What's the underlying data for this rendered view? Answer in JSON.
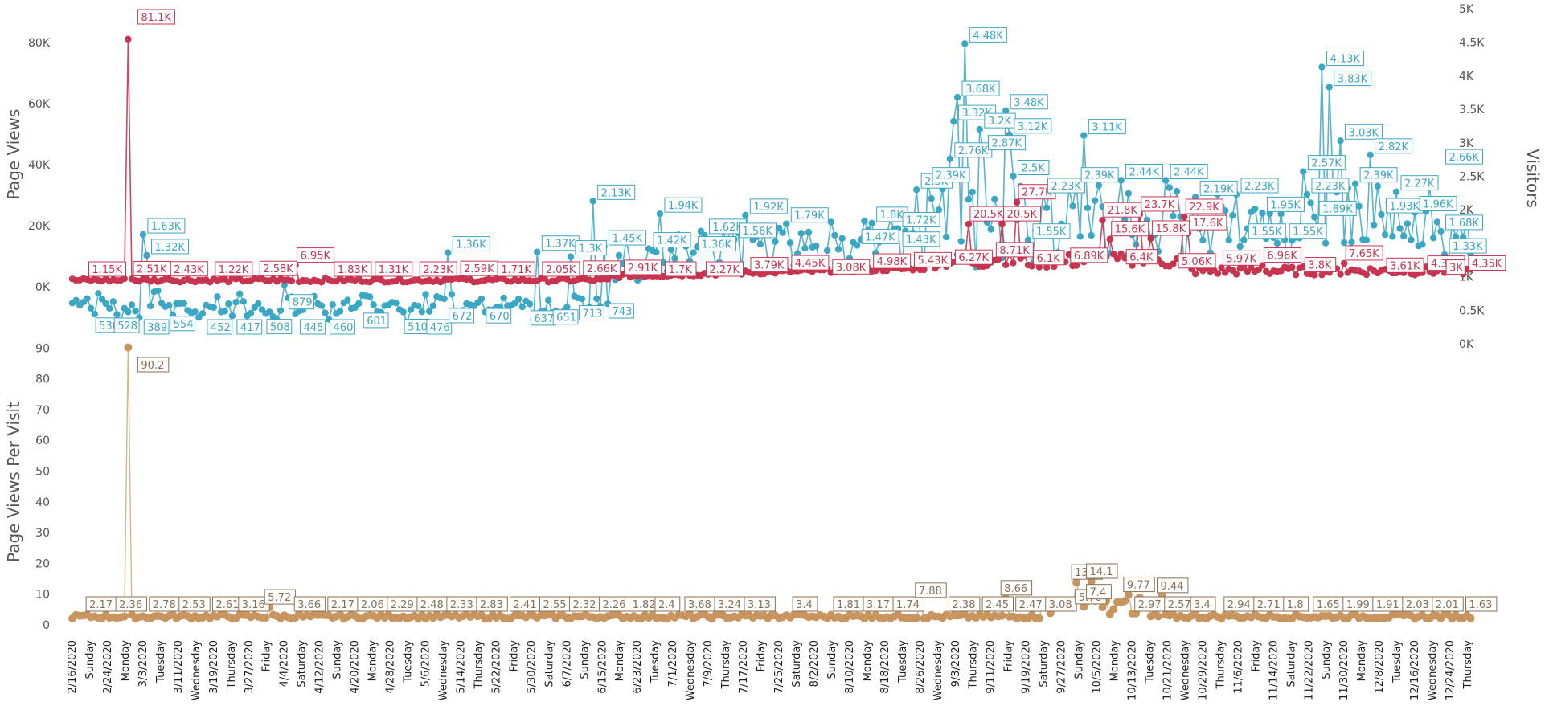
{
  "chart_data": [
    {
      "type": "line",
      "panel": "top",
      "ylabel": "Page Views",
      "y2label": "Visitors",
      "ylim": [
        -8000,
        85000
      ],
      "y2lim": [
        0,
        5000
      ],
      "left_ticks": [
        "0K",
        "20K",
        "40K",
        "60K",
        "80K"
      ],
      "right_ticks": [
        "0K",
        "0.5K",
        "1K",
        "1.5K",
        "2K",
        "2.5K",
        "3K",
        "3.5K",
        "4K",
        "4.5K",
        "5K"
      ],
      "colors": {
        "page_views": "#c8344f",
        "visitors": "#3aa7c5"
      },
      "series": [
        {
          "axis": "left",
          "labels": [
            {
              "day": 4,
              "text": "1.15K"
            },
            {
              "day": 16,
              "text": "2.51K"
            },
            {
              "day": 26,
              "text": "2.43K"
            },
            {
              "day": 38,
              "text": "1.22K"
            },
            {
              "day": 50,
              "text": "2.58K"
            },
            {
              "day": 60,
              "text": "6.95K"
            },
            {
              "day": 70,
              "text": "1.83K"
            },
            {
              "day": 81,
              "text": "1.31K"
            },
            {
              "day": 93,
              "text": "2.23K"
            },
            {
              "day": 104,
              "text": "2.59K"
            },
            {
              "day": 114,
              "text": "1.71K"
            },
            {
              "day": 126,
              "text": "2.05K"
            },
            {
              "day": 137,
              "text": "2.66K"
            },
            {
              "day": 148,
              "text": "2.91K"
            },
            {
              "day": 159,
              "text": "1.7K"
            },
            {
              "day": 170,
              "text": "2.27K"
            },
            {
              "day": 182,
              "text": "3.79K"
            },
            {
              "day": 193,
              "text": "4.45K"
            },
            {
              "day": 204,
              "text": "3.08K"
            },
            {
              "day": 215,
              "text": "4.98K"
            },
            {
              "day": 226,
              "text": "5.43K"
            },
            {
              "day": 237,
              "text": "6.27K"
            },
            {
              "day": 241,
              "text": "20.5K"
            },
            {
              "day": 248,
              "text": "8.71K"
            },
            {
              "day": 250,
              "text": "20.5K"
            },
            {
              "day": 254,
              "text": "27.7K"
            },
            {
              "day": 258,
              "text": "6.1K"
            },
            {
              "day": 268,
              "text": "6.89K"
            },
            {
              "day": 277,
              "text": "21.8K"
            },
            {
              "day": 279,
              "text": "15.6K"
            },
            {
              "day": 283,
              "text": "6.4K"
            },
            {
              "day": 287,
              "text": "23.7K"
            },
            {
              "day": 290,
              "text": "15.8K"
            },
            {
              "day": 299,
              "text": "22.9K"
            },
            {
              "day": 300,
              "text": "17.6K"
            },
            {
              "day": 297,
              "text": "5.06K"
            },
            {
              "day": 309,
              "text": "5.97K"
            },
            {
              "day": 320,
              "text": "6.96K"
            },
            {
              "day": 331,
              "text": "3.8K"
            },
            {
              "day": 342,
              "text": "7.65K"
            },
            {
              "day": 353,
              "text": "3.61K"
            },
            {
              "day": 364,
              "text": "4.31K"
            },
            {
              "day": 369,
              "text": "3K"
            },
            {
              "day": 375,
              "text": "4.35K"
            }
          ],
          "spike": {
            "day": 15,
            "text": "81.1K"
          }
        },
        {
          "axis": "right",
          "labels": [
            {
              "day": 5,
              "text": "530"
            },
            {
              "day": 10,
              "text": "528"
            },
            {
              "day": 18,
              "text": "389"
            },
            {
              "day": 25,
              "text": "554"
            },
            {
              "day": 35,
              "text": "452"
            },
            {
              "day": 43,
              "text": "417"
            },
            {
              "day": 51,
              "text": "508"
            },
            {
              "day": 57,
              "text": "879"
            },
            {
              "day": 60,
              "text": "445"
            },
            {
              "day": 68,
              "text": "460"
            },
            {
              "day": 77,
              "text": "601"
            },
            {
              "day": 88,
              "text": "510"
            },
            {
              "day": 94,
              "text": "476"
            },
            {
              "day": 100,
              "text": "672"
            },
            {
              "day": 110,
              "text": "670"
            },
            {
              "day": 122,
              "text": "637"
            },
            {
              "day": 128,
              "text": "651"
            },
            {
              "day": 135,
              "text": "713"
            },
            {
              "day": 143,
              "text": "743"
            },
            {
              "day": 19,
              "text": "1.63K"
            },
            {
              "day": 20,
              "text": "1.32K"
            },
            {
              "day": 101,
              "text": "1.36K"
            },
            {
              "day": 125,
              "text": "1.37K"
            },
            {
              "day": 134,
              "text": "1.3K"
            },
            {
              "day": 140,
              "text": "2.13K"
            },
            {
              "day": 143,
              "text": "1.45K"
            },
            {
              "day": 155,
              "text": "1.42K"
            },
            {
              "day": 158,
              "text": "1.94K"
            },
            {
              "day": 167,
              "text": "1.36K"
            },
            {
              "day": 170,
              "text": "1.62K"
            },
            {
              "day": 178,
              "text": "1.56K"
            },
            {
              "day": 181,
              "text": "1.92K"
            },
            {
              "day": 192,
              "text": "1.79K"
            },
            {
              "day": 211,
              "text": "1.47K"
            },
            {
              "day": 215,
              "text": "1.8K"
            },
            {
              "day": 222,
              "text": "1.43K"
            },
            {
              "day": 222,
              "text": "1.72K"
            },
            {
              "day": 227,
              "text": "2.3K"
            },
            {
              "day": 230,
              "text": "2.39K"
            },
            {
              "day": 236,
              "text": "2.76K"
            },
            {
              "day": 237,
              "text": "3.32K"
            },
            {
              "day": 238,
              "text": "3.68K"
            },
            {
              "day": 240,
              "text": "4.48K"
            },
            {
              "day": 244,
              "text": "3.2K"
            },
            {
              "day": 245,
              "text": "2.87K"
            },
            {
              "day": 251,
              "text": "3.48K"
            },
            {
              "day": 252,
              "text": "3.12K"
            },
            {
              "day": 253,
              "text": "2.5K"
            },
            {
              "day": 257,
              "text": "1.55K"
            },
            {
              "day": 261,
              "text": "2.23K"
            },
            {
              "day": 272,
              "text": "3.11K"
            },
            {
              "day": 270,
              "text": "2.39K"
            },
            {
              "day": 282,
              "text": "2.44K"
            },
            {
              "day": 294,
              "text": "2.44K"
            },
            {
              "day": 302,
              "text": "2.19K"
            },
            {
              "day": 313,
              "text": "2.23K"
            },
            {
              "day": 315,
              "text": "1.55K"
            },
            {
              "day": 320,
              "text": "1.95K"
            },
            {
              "day": 326,
              "text": "1.55K"
            },
            {
              "day": 331,
              "text": "2.57K"
            },
            {
              "day": 332,
              "text": "2.23K"
            },
            {
              "day": 334,
              "text": "1.89K"
            },
            {
              "day": 336,
              "text": "4.13K"
            },
            {
              "day": 338,
              "text": "3.83K"
            },
            {
              "day": 341,
              "text": "3.03K"
            },
            {
              "day": 345,
              "text": "2.39K"
            },
            {
              "day": 349,
              "text": "2.82K"
            },
            {
              "day": 352,
              "text": "1.93K"
            },
            {
              "day": 356,
              "text": "2.27K"
            },
            {
              "day": 361,
              "text": "1.96K"
            },
            {
              "day": 368,
              "text": "2.66K"
            },
            {
              "day": 368,
              "text": "1.68K"
            },
            {
              "day": 369,
              "text": "1.33K"
            }
          ]
        }
      ]
    },
    {
      "type": "line",
      "panel": "bottom",
      "ylabel": "Page Views Per Visit",
      "ylim": [
        0,
        95
      ],
      "ticks": [
        "0",
        "10",
        "20",
        "30",
        "40",
        "50",
        "60",
        "70",
        "80",
        "90"
      ],
      "color": "#c9955e",
      "spike": {
        "day": 15,
        "text": "90.2"
      },
      "labels": [
        {
          "day": 5,
          "text": "2.17"
        },
        {
          "day": 13,
          "text": "2.36"
        },
        {
          "day": 22,
          "text": "2.78"
        },
        {
          "day": 30,
          "text": "2.53"
        },
        {
          "day": 39,
          "text": "2.61"
        },
        {
          "day": 46,
          "text": "3.16"
        },
        {
          "day": 53,
          "text": "5.72"
        },
        {
          "day": 61,
          "text": "3.66"
        },
        {
          "day": 70,
          "text": "2.17"
        },
        {
          "day": 78,
          "text": "2.06"
        },
        {
          "day": 86,
          "text": "2.29"
        },
        {
          "day": 94,
          "text": "2.48"
        },
        {
          "day": 102,
          "text": "2.33"
        },
        {
          "day": 110,
          "text": "2.83"
        },
        {
          "day": 119,
          "text": "2.41"
        },
        {
          "day": 127,
          "text": "2.55"
        },
        {
          "day": 135,
          "text": "2.32"
        },
        {
          "day": 143,
          "text": "2.26"
        },
        {
          "day": 151,
          "text": "1.82"
        },
        {
          "day": 158,
          "text": "2.4"
        },
        {
          "day": 166,
          "text": "3.68"
        },
        {
          "day": 174,
          "text": "3.24"
        },
        {
          "day": 182,
          "text": "3.13"
        },
        {
          "day": 195,
          "text": "3.4"
        },
        {
          "day": 206,
          "text": "1.81"
        },
        {
          "day": 214,
          "text": "3.17"
        },
        {
          "day": 222,
          "text": "1.74"
        },
        {
          "day": 228,
          "text": "7.88"
        },
        {
          "day": 237,
          "text": "2.38"
        },
        {
          "day": 246,
          "text": "2.45"
        },
        {
          "day": 251,
          "text": "8.66"
        },
        {
          "day": 255,
          "text": "2.47"
        },
        {
          "day": 263,
          "text": "3.08"
        },
        {
          "day": 270,
          "text": "13.8"
        },
        {
          "day": 274,
          "text": "14.1"
        },
        {
          "day": 271,
          "text": "5.76"
        },
        {
          "day": 274,
          "text": "7.4"
        },
        {
          "day": 284,
          "text": "9.77"
        },
        {
          "day": 293,
          "text": "9.44"
        },
        {
          "day": 287,
          "text": "2.97"
        },
        {
          "day": 295,
          "text": "2.57"
        },
        {
          "day": 302,
          "text": "3.4"
        },
        {
          "day": 311,
          "text": "2.94"
        },
        {
          "day": 319,
          "text": "2.71"
        },
        {
          "day": 327,
          "text": "1.8"
        },
        {
          "day": 335,
          "text": "1.65"
        },
        {
          "day": 343,
          "text": "1.99"
        },
        {
          "day": 351,
          "text": "1.91"
        },
        {
          "day": 359,
          "text": "2.03"
        },
        {
          "day": 367,
          "text": "2.01"
        },
        {
          "day": 376,
          "text": "1.63"
        }
      ]
    }
  ],
  "x_axis": {
    "date_ticks": [
      {
        "day": 0,
        "text": "2/16/2020"
      },
      {
        "day": 8,
        "text": "2/24/2020"
      },
      {
        "day": 16,
        "text": "3/3/2020"
      },
      {
        "day": 24,
        "text": "3/11/2020"
      },
      {
        "day": 32,
        "text": "3/19/2020"
      },
      {
        "day": 40,
        "text": "3/27/2020"
      },
      {
        "day": 48,
        "text": "4/4/2020"
      },
      {
        "day": 56,
        "text": "4/12/2020"
      },
      {
        "day": 64,
        "text": "4/20/2020"
      },
      {
        "day": 72,
        "text": "4/28/2020"
      },
      {
        "day": 80,
        "text": "5/6/2020"
      },
      {
        "day": 88,
        "text": "5/14/2020"
      },
      {
        "day": 96,
        "text": "5/22/2020"
      },
      {
        "day": 104,
        "text": "5/30/2020"
      },
      {
        "day": 112,
        "text": "6/7/2020"
      },
      {
        "day": 120,
        "text": "6/15/2020"
      },
      {
        "day": 128,
        "text": "6/23/2020"
      },
      {
        "day": 136,
        "text": "7/1/2020"
      },
      {
        "day": 144,
        "text": "7/9/2020"
      },
      {
        "day": 152,
        "text": "7/17/2020"
      },
      {
        "day": 160,
        "text": "7/25/2020"
      },
      {
        "day": 168,
        "text": "8/2/2020"
      },
      {
        "day": 176,
        "text": "8/10/2020"
      },
      {
        "day": 184,
        "text": "8/18/2020"
      },
      {
        "day": 192,
        "text": "8/26/2020"
      },
      {
        "day": 200,
        "text": "9/3/2020"
      },
      {
        "day": 208,
        "text": "9/11/2020"
      },
      {
        "day": 216,
        "text": "9/19/2020"
      },
      {
        "day": 224,
        "text": "9/27/2020"
      },
      {
        "day": 232,
        "text": "10/5/2020"
      },
      {
        "day": 240,
        "text": "10/13/2020"
      },
      {
        "day": 248,
        "text": "10/21/2020"
      },
      {
        "day": 256,
        "text": "10/29/2020"
      },
      {
        "day": 264,
        "text": "11/6/2020"
      },
      {
        "day": 272,
        "text": "11/14/2020"
      },
      {
        "day": 280,
        "text": "11/22/2020"
      },
      {
        "day": 288,
        "text": "11/30/2020"
      },
      {
        "day": 296,
        "text": "12/8/2020"
      },
      {
        "day": 304,
        "text": "12/16/2020"
      },
      {
        "day": 312,
        "text": "12/24/2020"
      }
    ],
    "weekday_ticks": [
      {
        "day": 4,
        "text": "Sunday"
      },
      {
        "day": 12,
        "text": "Monday"
      },
      {
        "day": 20,
        "text": "Tuesday"
      },
      {
        "day": 28,
        "text": "Wednesday"
      },
      {
        "day": 36,
        "text": "Thursday"
      },
      {
        "day": 44,
        "text": "Friday"
      },
      {
        "day": 52,
        "text": "Saturday"
      },
      {
        "day": 60,
        "text": "Sunday"
      },
      {
        "day": 68,
        "text": "Monday"
      },
      {
        "day": 76,
        "text": "Tuesday"
      },
      {
        "day": 84,
        "text": "Wednesday"
      },
      {
        "day": 92,
        "text": "Thursday"
      },
      {
        "day": 100,
        "text": "Friday"
      },
      {
        "day": 108,
        "text": "Saturday"
      },
      {
        "day": 116,
        "text": "Sunday"
      },
      {
        "day": 124,
        "text": "Monday"
      },
      {
        "day": 132,
        "text": "Tuesday"
      },
      {
        "day": 140,
        "text": "Wednesday"
      },
      {
        "day": 148,
        "text": "Thursday"
      },
      {
        "day": 156,
        "text": "Friday"
      },
      {
        "day": 164,
        "text": "Saturday"
      },
      {
        "day": 172,
        "text": "Sunday"
      },
      {
        "day": 180,
        "text": "Monday"
      },
      {
        "day": 188,
        "text": "Tuesday"
      },
      {
        "day": 196,
        "text": "Wednesday"
      },
      {
        "day": 204,
        "text": "Thursday"
      },
      {
        "day": 212,
        "text": "Friday"
      },
      {
        "day": 220,
        "text": "Saturday"
      },
      {
        "day": 228,
        "text": "Sunday"
      },
      {
        "day": 236,
        "text": "Monday"
      },
      {
        "day": 244,
        "text": "Tuesday"
      },
      {
        "day": 252,
        "text": "Wednesday"
      },
      {
        "day": 260,
        "text": "Thursday"
      },
      {
        "day": 268,
        "text": "Friday"
      },
      {
        "day": 276,
        "text": "Saturday"
      },
      {
        "day": 284,
        "text": "Sunday"
      },
      {
        "day": 292,
        "text": "Monday"
      },
      {
        "day": 300,
        "text": "Tuesday"
      },
      {
        "day": 308,
        "text": "Wednesday"
      },
      {
        "day": 316,
        "text": "Thursday"
      }
    ]
  }
}
